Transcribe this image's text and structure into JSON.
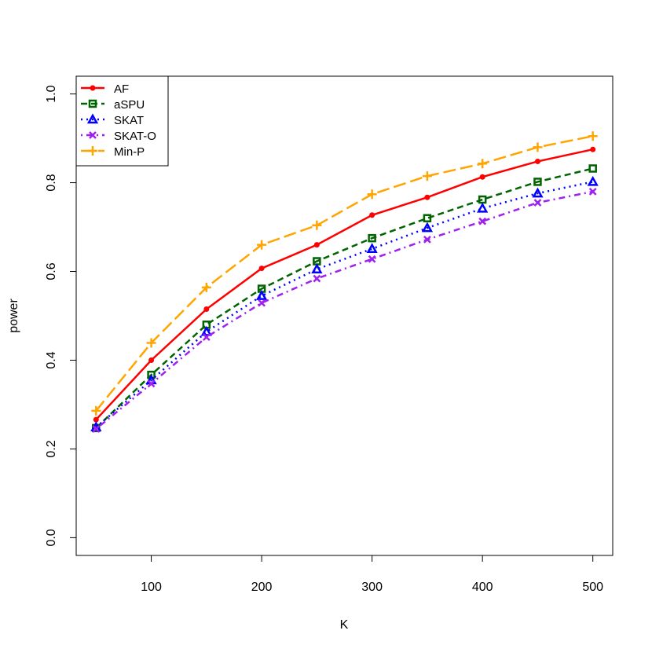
{
  "chart_data": {
    "type": "line",
    "x_label": "K",
    "y_label": "power",
    "x": [
      50,
      100,
      150,
      200,
      250,
      300,
      350,
      400,
      450,
      500
    ],
    "xlim": [
      32,
      518
    ],
    "xticks": [
      100,
      200,
      300,
      400,
      500
    ],
    "ylim": [
      -0.04,
      1.04
    ],
    "yticks": [
      {
        "value": 0,
        "label": "0.0"
      },
      {
        "value": 0.2,
        "label": "0.2"
      },
      {
        "value": 0.4,
        "label": "0.4"
      },
      {
        "value": 0.6,
        "label": "0.6"
      },
      {
        "value": 0.8,
        "label": "0.8"
      },
      {
        "value": 1,
        "label": "1.0"
      }
    ],
    "legend": "top-left",
    "series": [
      {
        "name": "AF",
        "color": "#ff0000",
        "dash": "solid",
        "marker": "dot",
        "values": [
          0.266,
          0.4,
          0.515,
          0.607,
          0.66,
          0.727,
          0.767,
          0.813,
          0.848,
          0.875
        ]
      },
      {
        "name": "aSPU",
        "color": "#006400",
        "dash": "dashed",
        "marker": "square",
        "values": [
          0.247,
          0.367,
          0.48,
          0.561,
          0.623,
          0.675,
          0.72,
          0.762,
          0.802,
          0.832
        ]
      },
      {
        "name": "SKAT",
        "color": "#0000ff",
        "dash": "dotted",
        "marker": "triangle",
        "values": [
          0.249,
          0.355,
          0.464,
          0.545,
          0.605,
          0.651,
          0.698,
          0.742,
          0.776,
          0.802
        ]
      },
      {
        "name": "SKAT-O",
        "color": "#a020f0",
        "dash": "dotdash",
        "marker": "cross",
        "values": [
          0.245,
          0.347,
          0.452,
          0.529,
          0.584,
          0.628,
          0.672,
          0.713,
          0.755,
          0.78
        ]
      },
      {
        "name": "Min-P",
        "color": "#ffa500",
        "dash": "longdash",
        "marker": "plus",
        "values": [
          0.286,
          0.439,
          0.564,
          0.66,
          0.704,
          0.774,
          0.815,
          0.843,
          0.88,
          0.905
        ]
      }
    ]
  }
}
